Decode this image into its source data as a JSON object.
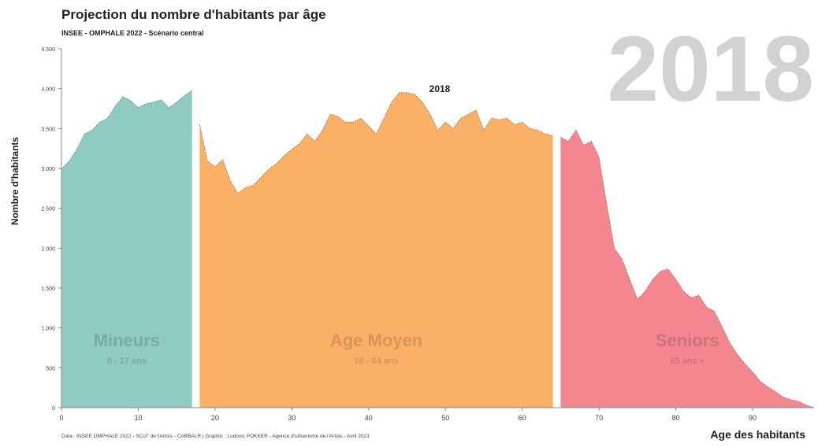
{
  "chart_data": {
    "type": "area",
    "title": "Projection du nombre d'habitants par âge",
    "subtitle": "INSEE - OMPHALE 2022 - Scénario central",
    "watermark": "2018",
    "annotation": "2018",
    "x_label": "Age des habitants",
    "y_label": "Nombre d'habitants",
    "source": "Data : INSEE OMPHALE 2022 - SCoT de l'Artois - CABBALR | Graphic : Ludovic POKKER - Agence d'urbanisme de l'Artois - Avril 2023",
    "xlim": [
      0,
      98
    ],
    "xticks": [
      0,
      10,
      20,
      30,
      40,
      50,
      60,
      70,
      80,
      90
    ],
    "ylim": [
      0,
      4500
    ],
    "yticks": [
      0,
      500,
      {
        "value": 1000,
        "label": "1.000"
      },
      {
        "value": 1500,
        "label": "1.500"
      },
      {
        "value": 2000,
        "label": "2.000"
      },
      {
        "value": 2500,
        "label": "2.500"
      },
      {
        "value": 3000,
        "label": "3.000"
      },
      {
        "value": 3500,
        "label": "3.500"
      },
      {
        "value": 4000,
        "label": "4.000"
      },
      {
        "value": 4500,
        "label": "4.500"
      }
    ],
    "series": [
      {
        "name": "Mineurs",
        "range": "0 - 17 ans",
        "color": "#8fcac3",
        "x": [
          0,
          1,
          2,
          3,
          4,
          5,
          6,
          7,
          8,
          9,
          10,
          11,
          12,
          13,
          14,
          15,
          16,
          17
        ],
        "values": [
          2990,
          3090,
          3240,
          3430,
          3480,
          3580,
          3630,
          3780,
          3900,
          3850,
          3760,
          3810,
          3830,
          3860,
          3760,
          3830,
          3910,
          3980
        ]
      },
      {
        "name": "Age Moyen",
        "range": "18 - 64 ans",
        "color": "#fbb067",
        "x": [
          18,
          19,
          20,
          21,
          22,
          23,
          24,
          25,
          26,
          27,
          28,
          29,
          30,
          31,
          32,
          33,
          34,
          35,
          36,
          37,
          38,
          39,
          40,
          41,
          42,
          43,
          44,
          45,
          46,
          47,
          48,
          49,
          50,
          51,
          52,
          53,
          54,
          55,
          56,
          57,
          58,
          59,
          60,
          61,
          62,
          63,
          64
        ],
        "values": [
          3550,
          3090,
          3020,
          3110,
          2840,
          2690,
          2760,
          2790,
          2890,
          2990,
          3060,
          3160,
          3240,
          3310,
          3430,
          3340,
          3480,
          3680,
          3650,
          3580,
          3580,
          3630,
          3530,
          3430,
          3630,
          3830,
          3950,
          3950,
          3930,
          3830,
          3680,
          3480,
          3580,
          3500,
          3630,
          3680,
          3730,
          3480,
          3630,
          3610,
          3630,
          3550,
          3580,
          3500,
          3480,
          3430,
          3410
        ]
      },
      {
        "name": "Seniors",
        "range": "65 ans +",
        "color": "#f4868f",
        "x": [
          65,
          66,
          67,
          68,
          69,
          70,
          71,
          72,
          73,
          74,
          75,
          76,
          77,
          78,
          79,
          80,
          81,
          82,
          83,
          84,
          85,
          86,
          87,
          88,
          89,
          90,
          91,
          92,
          93,
          94,
          95,
          96,
          97,
          98
        ],
        "values": [
          3390,
          3340,
          3480,
          3290,
          3340,
          3140,
          2550,
          2000,
          1860,
          1610,
          1360,
          1460,
          1610,
          1710,
          1740,
          1610,
          1460,
          1380,
          1410,
          1260,
          1210,
          1020,
          820,
          670,
          550,
          450,
          330,
          260,
          200,
          130,
          100,
          80,
          30,
          0
        ]
      }
    ]
  }
}
